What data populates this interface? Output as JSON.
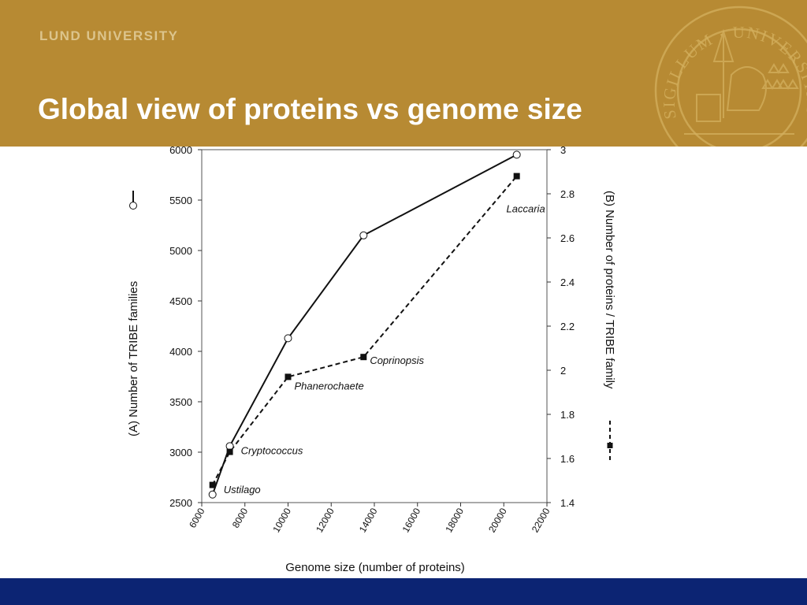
{
  "header": {
    "university": "LUND UNIVERSITY",
    "title": "Global view of proteins vs genome size",
    "seal_text": "SIGILLUM · UNIVERSITATIS · CAROLINAE · AD VTRVMQVE",
    "background": "#b78a33",
    "university_color": "#dcc48c"
  },
  "footer": {
    "background": "#0c2473"
  },
  "chart_data": {
    "type": "line",
    "xlabel": "Genome size (number of proteins)",
    "ylabel_left": "(A) Number of TRIBE families",
    "ylabel_right": "(B) Number of proteins / TRIBE family",
    "xlim": [
      6000,
      22000
    ],
    "ylim_left": [
      2500,
      6000
    ],
    "ylim_right": [
      1.4,
      3.0
    ],
    "x_ticks": [
      6000,
      8000,
      10000,
      12000,
      14000,
      16000,
      18000,
      20000,
      22000
    ],
    "y_left_ticks": [
      2500,
      3000,
      3500,
      4000,
      4500,
      5000,
      5500,
      6000
    ],
    "y_right_ticks": [
      1.4,
      1.6,
      1.8,
      2.0,
      2.2,
      2.4,
      2.6,
      2.8,
      3.0
    ],
    "y_right_tick_labels": [
      "1.4",
      "1.6",
      "1.8",
      "2",
      "2.2",
      "2.4",
      "2.6",
      "2.8",
      "3"
    ],
    "grid": false,
    "series": [
      {
        "name": "(A) Number of TRIBE families",
        "axis": "left",
        "style": "solid",
        "marker": "open-circle",
        "x": [
          6500,
          7300,
          10000,
          13500,
          20600
        ],
        "y": [
          2580,
          3060,
          4130,
          5150,
          5950
        ]
      },
      {
        "name": "(B) Number of proteins / TRIBE family",
        "axis": "right",
        "style": "dashed",
        "marker": "filled-square",
        "x": [
          6500,
          7300,
          10000,
          13500,
          20600
        ],
        "y": [
          1.48,
          1.63,
          1.97,
          2.06,
          2.88
        ]
      }
    ],
    "annotations": [
      "Ustilago",
      "Cryptococcus",
      "Phanerochaete",
      "Coprinopsis",
      "Laccaria"
    ]
  }
}
